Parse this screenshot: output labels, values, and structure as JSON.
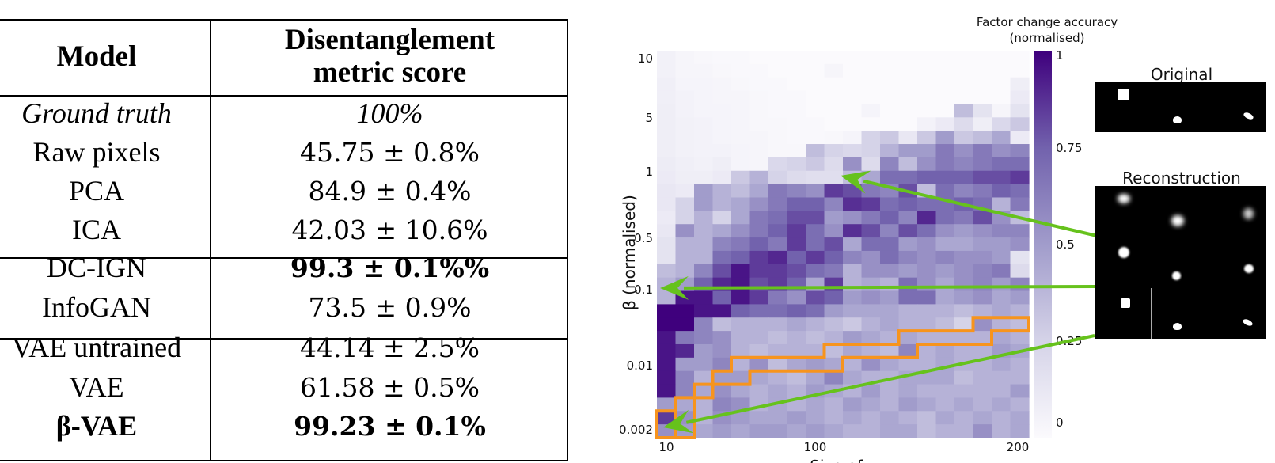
{
  "table": {
    "headers": {
      "model": "Model",
      "score_line1": "Disentanglement",
      "score_line2": "metric score"
    },
    "rows": [
      {
        "model": "Ground truth",
        "score": "100%",
        "style": "italic",
        "group": 1
      },
      {
        "model": "Raw pixels",
        "score": "45.75 ± 0.8%",
        "style": "normal",
        "group": 1
      },
      {
        "model": "PCA",
        "score": "84.9 ± 0.4%",
        "style": "normal",
        "group": 1
      },
      {
        "model": "ICA",
        "score": "42.03 ± 10.6%",
        "style": "normal",
        "group": 1
      },
      {
        "model": "DC-IGN",
        "score": "99.3 ± 0.1%%",
        "style": "bold-score",
        "group": 2
      },
      {
        "model": "InfoGAN",
        "score": "73.5 ± 0.9%",
        "style": "normal",
        "group": 2
      },
      {
        "model": "VAE untrained",
        "score": "44.14 ± 2.5%",
        "style": "normal",
        "group": 3
      },
      {
        "model": "VAE",
        "score": "61.58 ± 0.5%",
        "style": "normal",
        "group": 3
      },
      {
        "model": "β-VAE",
        "score": "99.23 ± 0.1%",
        "style": "bold",
        "group": 3
      }
    ]
  },
  "chart_data": {
    "type": "heatmap",
    "title": "",
    "xlabel": "Size of z",
    "ylabel": "β (normalised)",
    "x_ticks": [
      "10",
      "100",
      "200"
    ],
    "y_ticks": [
      "10",
      "5",
      "1",
      "0.5",
      "0.1",
      "0.01",
      "0.002"
    ],
    "colorbar": {
      "title_line1": "Factor change accuracy",
      "title_line2": "(normalised)",
      "ticks": [
        "1",
        "0.75",
        "0.5",
        "0.25",
        "0"
      ],
      "range": [
        0,
        1
      ],
      "color_low": "#fbfafd",
      "color_high": "#3f007d"
    },
    "n_cols": 20,
    "n_rows": 29,
    "values_note": "rows top (β=10) to bottom (β=0.002); columns left (z=10) to right (z=200); approximate normalised accuracy",
    "values": [
      [
        0.06,
        0.03,
        0.02,
        0.01,
        0.01,
        0.0,
        0.0,
        0.0,
        0.0,
        0.0,
        0.0,
        0.0,
        0.0,
        0.0,
        0.0,
        0.0,
        0.0,
        0.0,
        0.0,
        0.0
      ],
      [
        0.06,
        0.03,
        0.03,
        0.02,
        0.01,
        0.01,
        0.0,
        0.0,
        0.0,
        0.03,
        0.0,
        0.0,
        0.0,
        0.0,
        0.0,
        0.0,
        0.0,
        0.0,
        0.0,
        0.0
      ],
      [
        0.07,
        0.04,
        0.04,
        0.03,
        0.02,
        0.01,
        0.01,
        0.0,
        0.0,
        0.0,
        0.0,
        0.0,
        0.0,
        0.0,
        0.0,
        0.0,
        0.0,
        0.0,
        0.0,
        0.08
      ],
      [
        0.07,
        0.05,
        0.04,
        0.03,
        0.03,
        0.02,
        0.01,
        0.01,
        0.0,
        0.0,
        0.0,
        0.0,
        0.0,
        0.0,
        0.0,
        0.0,
        0.0,
        0.0,
        0.0,
        0.1
      ],
      [
        0.08,
        0.05,
        0.04,
        0.04,
        0.03,
        0.02,
        0.01,
        0.01,
        0.0,
        0.0,
        0.0,
        0.04,
        0.0,
        0.0,
        0.0,
        0.0,
        0.35,
        0.15,
        0.03,
        0.15
      ],
      [
        0.08,
        0.06,
        0.05,
        0.04,
        0.03,
        0.02,
        0.02,
        0.01,
        0.01,
        0.0,
        0.0,
        0.0,
        0.0,
        0.0,
        0.05,
        0.1,
        0.2,
        0.08,
        0.22,
        0.3
      ],
      [
        0.08,
        0.06,
        0.05,
        0.04,
        0.03,
        0.03,
        0.02,
        0.01,
        0.01,
        0.02,
        0.04,
        0.25,
        0.3,
        0.12,
        0.3,
        0.5,
        0.3,
        0.35,
        0.45,
        0.1
      ],
      [
        0.08,
        0.06,
        0.05,
        0.05,
        0.04,
        0.03,
        0.02,
        0.02,
        0.35,
        0.25,
        0.22,
        0.25,
        0.4,
        0.5,
        0.5,
        0.65,
        0.55,
        0.65,
        0.55,
        0.6
      ],
      [
        0.09,
        0.07,
        0.06,
        0.08,
        0.04,
        0.03,
        0.22,
        0.25,
        0.3,
        0.2,
        0.55,
        0.2,
        0.6,
        0.35,
        0.55,
        0.65,
        0.6,
        0.65,
        0.7,
        0.7
      ],
      [
        0.1,
        0.08,
        0.08,
        0.1,
        0.3,
        0.4,
        0.25,
        0.2,
        0.18,
        0.18,
        0.35,
        0.45,
        0.7,
        0.7,
        0.75,
        0.75,
        0.75,
        0.8,
        0.8,
        0.85
      ],
      [
        0.12,
        0.1,
        0.5,
        0.4,
        0.35,
        0.45,
        0.65,
        0.6,
        0.55,
        0.85,
        0.8,
        0.65,
        0.6,
        0.8,
        0.35,
        0.7,
        0.6,
        0.65,
        0.75,
        0.7
      ],
      [
        0.12,
        0.25,
        0.5,
        0.4,
        0.45,
        0.55,
        0.65,
        0.75,
        0.75,
        0.6,
        0.88,
        0.85,
        0.7,
        0.75,
        0.7,
        0.7,
        0.75,
        0.7,
        0.4,
        0.65
      ],
      [
        0.1,
        0.25,
        0.4,
        0.25,
        0.45,
        0.65,
        0.7,
        0.8,
        0.8,
        0.5,
        0.55,
        0.65,
        0.75,
        0.6,
        0.9,
        0.7,
        0.65,
        0.8,
        0.55,
        0.35
      ],
      [
        0.12,
        0.55,
        0.4,
        0.45,
        0.55,
        0.65,
        0.75,
        0.85,
        0.7,
        0.55,
        0.88,
        0.8,
        0.6,
        0.8,
        0.7,
        0.55,
        0.5,
        0.55,
        0.6,
        0.6
      ],
      [
        0.15,
        0.4,
        0.4,
        0.6,
        0.65,
        0.75,
        0.65,
        0.85,
        0.7,
        0.8,
        0.45,
        0.7,
        0.7,
        0.5,
        0.55,
        0.45,
        0.45,
        0.5,
        0.5,
        0.55
      ],
      [
        0.15,
        0.4,
        0.4,
        0.7,
        0.75,
        0.85,
        0.9,
        0.75,
        0.85,
        0.75,
        0.6,
        0.55,
        0.7,
        0.6,
        0.55,
        0.6,
        0.55,
        0.55,
        0.5,
        0.15
      ],
      [
        0.35,
        0.4,
        0.6,
        0.8,
        0.95,
        0.85,
        0.85,
        0.8,
        0.7,
        0.65,
        0.4,
        0.55,
        0.55,
        0.5,
        0.55,
        0.5,
        0.55,
        0.6,
        0.65,
        0.2
      ],
      [
        0.4,
        0.5,
        0.75,
        0.9,
        0.95,
        0.8,
        0.85,
        0.75,
        0.45,
        0.85,
        0.4,
        0.45,
        0.4,
        0.7,
        0.55,
        0.45,
        0.55,
        0.6,
        0.5,
        0.6
      ],
      [
        0.4,
        0.95,
        0.95,
        0.75,
        0.95,
        0.85,
        0.65,
        0.55,
        0.8,
        0.75,
        0.5,
        0.55,
        0.5,
        0.7,
        0.7,
        0.45,
        0.5,
        0.55,
        0.45,
        0.5
      ],
      [
        1.0,
        1.0,
        0.95,
        0.95,
        0.75,
        0.7,
        0.7,
        0.75,
        0.7,
        0.5,
        0.45,
        0.45,
        0.45,
        0.4,
        0.4,
        0.4,
        0.35,
        0.4,
        0.45,
        0.4
      ],
      [
        1.0,
        1.0,
        0.6,
        0.35,
        0.4,
        0.4,
        0.4,
        0.45,
        0.4,
        0.35,
        0.3,
        0.4,
        0.45,
        0.4,
        0.4,
        0.35,
        0.25,
        0.55,
        0.4,
        0.35
      ],
      [
        0.95,
        0.65,
        0.6,
        0.55,
        0.4,
        0.4,
        0.35,
        0.4,
        0.35,
        0.4,
        0.5,
        0.45,
        0.4,
        0.45,
        0.4,
        0.4,
        0.4,
        0.4,
        0.45,
        0.4
      ],
      [
        0.95,
        0.9,
        0.5,
        0.55,
        0.4,
        0.35,
        0.4,
        0.4,
        0.4,
        0.35,
        0.45,
        0.4,
        0.35,
        0.6,
        0.4,
        0.45,
        0.4,
        0.4,
        0.5,
        0.45
      ],
      [
        0.95,
        0.5,
        0.5,
        0.6,
        0.4,
        0.55,
        0.35,
        0.45,
        0.5,
        0.45,
        0.4,
        0.55,
        0.45,
        0.4,
        0.4,
        0.45,
        0.4,
        0.4,
        0.45,
        0.4
      ],
      [
        0.95,
        0.6,
        0.4,
        0.5,
        0.5,
        0.45,
        0.4,
        0.35,
        0.45,
        0.6,
        0.45,
        0.4,
        0.4,
        0.45,
        0.45,
        0.45,
        0.35,
        0.4,
        0.4,
        0.4
      ],
      [
        0.95,
        0.6,
        0.45,
        0.55,
        0.45,
        0.4,
        0.45,
        0.4,
        0.5,
        0.45,
        0.4,
        0.5,
        0.4,
        0.45,
        0.4,
        0.4,
        0.4,
        0.4,
        0.4,
        0.5
      ],
      [
        0.5,
        0.45,
        0.4,
        0.6,
        0.55,
        0.4,
        0.45,
        0.4,
        0.45,
        0.4,
        0.5,
        0.45,
        0.4,
        0.5,
        0.45,
        0.4,
        0.45,
        0.4,
        0.45,
        0.4
      ],
      [
        0.85,
        0.55,
        0.4,
        0.55,
        0.5,
        0.45,
        0.45,
        0.5,
        0.45,
        0.4,
        0.45,
        0.4,
        0.45,
        0.4,
        0.35,
        0.45,
        0.4,
        0.45,
        0.4,
        0.45
      ],
      [
        0.55,
        0.5,
        0.45,
        0.5,
        0.45,
        0.5,
        0.5,
        0.45,
        0.5,
        0.45,
        0.4,
        0.4,
        0.45,
        0.45,
        0.35,
        0.4,
        0.4,
        0.55,
        0.4,
        0.45
      ]
    ],
    "highlight_region": {
      "label": "orange staircase band",
      "color": "#f7941d",
      "polygon_cells": [
        [
          0,
          29
        ],
        [
          0,
          27
        ],
        [
          1,
          27
        ],
        [
          1,
          26
        ],
        [
          2,
          26
        ],
        [
          2,
          25
        ],
        [
          3,
          25
        ],
        [
          3,
          24
        ],
        [
          4,
          24
        ],
        [
          4,
          23
        ],
        [
          9,
          23
        ],
        [
          9,
          22
        ],
        [
          13,
          22
        ],
        [
          13,
          21
        ],
        [
          17,
          21
        ],
        [
          17,
          20
        ],
        [
          20,
          20
        ],
        [
          20,
          21
        ],
        [
          18,
          21
        ],
        [
          18,
          22
        ],
        [
          14,
          22
        ],
        [
          14,
          23
        ],
        [
          10,
          23
        ],
        [
          10,
          24
        ],
        [
          5,
          24
        ],
        [
          5,
          25
        ],
        [
          3,
          25
        ],
        [
          3,
          26
        ],
        [
          2,
          26
        ],
        [
          2,
          29
        ]
      ]
    },
    "arrows": {
      "color": "#66c21c",
      "items": [
        {
          "to_label": "Reconstruction (top image)",
          "from_region": "β≈1, z≈100"
        },
        {
          "to_label": "Reconstruction (middle image)",
          "from_region": "β≈0.1, z=10"
        },
        {
          "to_label": "Reconstruction (bottom image)",
          "from_region": "β≈0.002, z=10"
        }
      ]
    }
  },
  "panels": {
    "original_title": "Original",
    "reconstruction_title": "Reconstruction"
  }
}
